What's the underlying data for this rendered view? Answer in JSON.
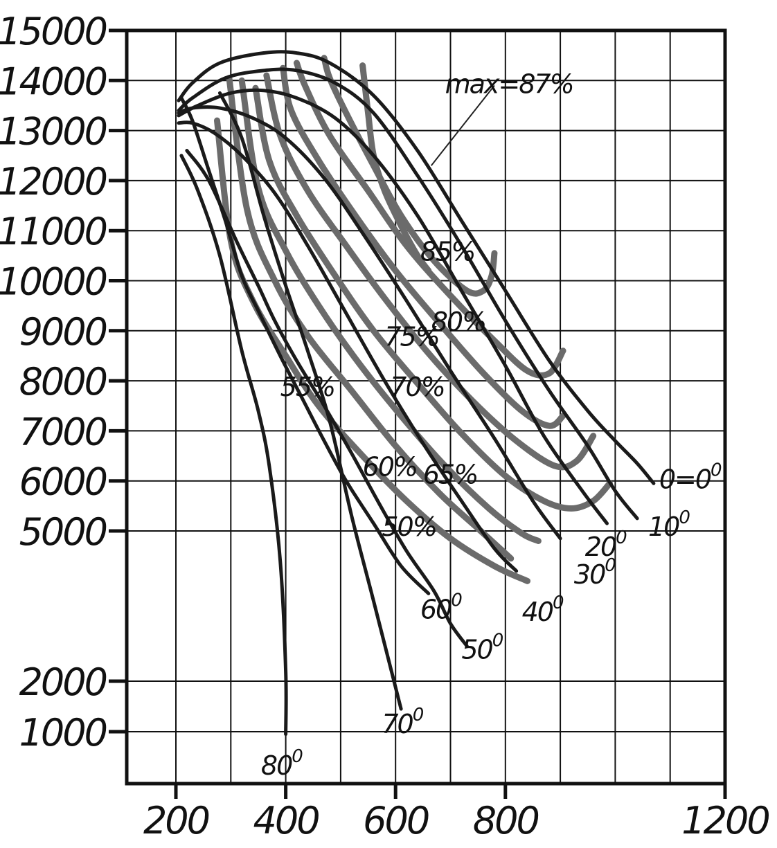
{
  "chart_data": {
    "type": "line",
    "title": "",
    "xlabel": "",
    "ylabel": "",
    "xlim": [
      150,
      1200
    ],
    "x_ticks": [
      "200",
      "400",
      "600",
      "800",
      "1200"
    ],
    "x_tick_values": [
      200,
      400,
      600,
      800,
      1200
    ],
    "x_gridlines": [
      200,
      300,
      400,
      500,
      600,
      700,
      800,
      900,
      1000,
      1100,
      1200
    ],
    "y_ticks": [
      "1000",
      "2000",
      "5000",
      "6000",
      "7000",
      "8000",
      "9000",
      "10000",
      "11000",
      "12000",
      "13000",
      "14000",
      "15000"
    ],
    "y_tick_values": [
      1000,
      2000,
      5000,
      6000,
      7000,
      8000,
      9000,
      10000,
      11000,
      12000,
      13000,
      14000,
      15000
    ],
    "grid": true,
    "series": [
      {
        "name": "0=0",
        "superscript": "0",
        "kind": "blade-angle",
        "x": [
          205,
          230,
          280,
          360,
          420,
          480,
          560,
          640,
          720,
          800,
          880,
          950,
          1000,
          1040,
          1070
        ],
        "y": [
          13600,
          13950,
          14350,
          14550,
          14550,
          14350,
          13700,
          12600,
          11200,
          9800,
          8400,
          7400,
          6800,
          6350,
          5950
        ]
      },
      {
        "name": "10",
        "superscript": "0",
        "kind": "blade-angle",
        "x": [
          205,
          230,
          290,
          360,
          420,
          490,
          560,
          640,
          720,
          800,
          880,
          950,
          1000,
          1040
        ],
        "y": [
          13400,
          13650,
          14050,
          14200,
          14200,
          13950,
          13350,
          12100,
          10700,
          9200,
          7800,
          6700,
          5800,
          5250
        ]
      },
      {
        "name": "20",
        "superscript": "0",
        "kind": "blade-angle",
        "x": [
          205,
          240,
          300,
          360,
          420,
          490,
          560,
          640,
          720,
          800,
          870,
          940,
          985
        ],
        "y": [
          13300,
          13500,
          13750,
          13800,
          13650,
          13250,
          12500,
          11300,
          9800,
          8300,
          6900,
          5800,
          5150
        ]
      },
      {
        "name": "30",
        "superscript": "0",
        "kind": "blade-angle",
        "x": [
          205,
          230,
          280,
          340,
          400,
          470,
          540,
          620,
          700,
          780,
          850,
          900
        ],
        "y": [
          13350,
          13450,
          13450,
          13250,
          12850,
          12050,
          10950,
          9600,
          8200,
          6850,
          5600,
          4850
        ]
      },
      {
        "name": "40",
        "superscript": "0",
        "kind": "blade-angle",
        "x": [
          205,
          230,
          270,
          320,
          380,
          440,
          510,
          580,
          650,
          720,
          780,
          820
        ],
        "y": [
          13150,
          13150,
          12950,
          12500,
          11750,
          10700,
          9350,
          8000,
          6750,
          5600,
          4650,
          4200
        ]
      },
      {
        "name": "50",
        "superscript": "0",
        "kind": "blade-angle",
        "x": [
          220,
          260,
          310,
          350,
          380,
          420,
          470,
          520,
          570,
          620,
          670,
          700,
          730
        ],
        "y": [
          12600,
          12000,
          10800,
          9900,
          9200,
          8400,
          7500,
          6550,
          5550,
          4600,
          3800,
          3150,
          2700
        ]
      },
      {
        "name": "60",
        "superscript": "0",
        "kind": "blade-angle",
        "x": [
          210,
          230,
          260,
          290,
          320,
          350,
          390,
          430,
          470,
          510,
          560,
          610,
          660
        ],
        "y": [
          13650,
          13200,
          12200,
          11200,
          10100,
          9400,
          8500,
          7650,
          6800,
          6000,
          5150,
          4300,
          3750
        ]
      },
      {
        "name": "70",
        "superscript": "0",
        "kind": "blade-angle",
        "x": [
          280,
          320,
          360,
          400,
          440,
          480,
          520,
          560,
          610
        ],
        "y": [
          13750,
          12850,
          11300,
          9900,
          8600,
          7200,
          5300,
          3600,
          1450
        ]
      },
      {
        "name": "80",
        "superscript": "0",
        "kind": "blade-angle",
        "x": [
          210,
          240,
          280,
          320,
          350,
          370,
          390,
          400,
          400
        ],
        "y": [
          12500,
          11800,
          10500,
          8600,
          7400,
          6300,
          4400,
          2200,
          950
        ]
      },
      {
        "name": "50%",
        "kind": "efficiency",
        "x": [
          275,
          300,
          340,
          400,
          460,
          540,
          620,
          700,
          780,
          840
        ],
        "y": [
          13200,
          10800,
          9600,
          8500,
          7500,
          6500,
          5600,
          4850,
          4300,
          4000
        ]
      },
      {
        "name": "55%",
        "kind": "efficiency",
        "x": [
          297,
          330,
          380,
          440,
          520,
          600,
          680,
          750,
          810
        ],
        "y": [
          14050,
          11400,
          10000,
          8900,
          7800,
          6700,
          5750,
          5050,
          4450
        ]
      },
      {
        "name": "60%",
        "kind": "efficiency",
        "x": [
          320,
          350,
          400,
          460,
          530,
          610,
          690,
          770,
          830,
          860
        ],
        "y": [
          14000,
          11850,
          10600,
          9500,
          8400,
          7300,
          6300,
          5450,
          4950,
          4800
        ]
      },
      {
        "name": "65%",
        "kind": "efficiency",
        "x": [
          345,
          370,
          420,
          490,
          560,
          640,
          720,
          800,
          870,
          920,
          960,
          990
        ],
        "y": [
          13850,
          12400,
          11300,
          10100,
          9000,
          7950,
          6950,
          6100,
          5600,
          5450,
          5600,
          5950
        ]
      },
      {
        "name": "70%",
        "kind": "efficiency",
        "x": [
          365,
          390,
          440,
          510,
          580,
          660,
          740,
          820,
          890,
          930,
          960
        ],
        "y": [
          14100,
          12900,
          11800,
          10700,
          9650,
          8550,
          7600,
          6800,
          6300,
          6400,
          6900
        ]
      },
      {
        "name": "75%",
        "kind": "efficiency",
        "x": [
          395,
          410,
          460,
          530,
          600,
          680,
          760,
          830,
          880,
          905
        ],
        "y": [
          14250,
          13400,
          12400,
          11250,
          10200,
          9150,
          8150,
          7400,
          7100,
          7300
        ]
      },
      {
        "name": "80%",
        "kind": "efficiency",
        "x": [
          420,
          435,
          480,
          550,
          620,
          700,
          780,
          840,
          880,
          905
        ],
        "y": [
          14350,
          13900,
          12900,
          11800,
          10700,
          9700,
          8800,
          8200,
          8150,
          8600
        ]
      },
      {
        "name": "85%",
        "kind": "efficiency",
        "x": [
          470,
          480,
          510,
          560,
          610,
          670,
          730,
          760,
          775,
          780
        ],
        "y": [
          14450,
          14050,
          13350,
          12300,
          11300,
          10400,
          9800,
          9800,
          10100,
          10550
        ]
      },
      {
        "name": "max",
        "kind": "efficiency",
        "x": [
          540,
          550,
          560,
          580,
          610,
          640,
          660
        ],
        "y": [
          14300,
          13350,
          12500,
          11800,
          11100,
          10500,
          10200
        ]
      }
    ],
    "annotations": [
      {
        "text": "max=87%",
        "x": 690,
        "y": 13750
      },
      {
        "text": "85%",
        "x": 645,
        "y": 10400
      },
      {
        "text": "80%",
        "x": 665,
        "y": 9000
      },
      {
        "text": "75%",
        "x": 580,
        "y": 8700
      },
      {
        "text": "70%",
        "x": 590,
        "y": 7700
      },
      {
        "text": "65%",
        "x": 650,
        "y": 5950
      },
      {
        "text": "60%",
        "x": 540,
        "y": 6100
      },
      {
        "text": "55%",
        "x": 390,
        "y": 7700
      },
      {
        "text": "50%",
        "x": 575,
        "y": 4900
      }
    ],
    "angle_labels": [
      {
        "text": "0=0",
        "sup": "0",
        "x": 1080,
        "y": 5850
      },
      {
        "text": "10",
        "sup": "0",
        "x": 1060,
        "y": 4900
      },
      {
        "text": "20",
        "sup": "0",
        "x": 945,
        "y": 4500
      },
      {
        "text": "30",
        "sup": "0",
        "x": 925,
        "y": 3950
      },
      {
        "text": "40",
        "sup": "0",
        "x": 830,
        "y": 3200
      },
      {
        "text": "50",
        "sup": "0",
        "x": 720,
        "y": 2450
      },
      {
        "text": "60",
        "sup": "0",
        "x": 645,
        "y": 3250
      },
      {
        "text": "70",
        "sup": "0",
        "x": 575,
        "y": 970
      },
      {
        "text": "80",
        "sup": "0",
        "x": 355,
        "y": 150
      }
    ]
  }
}
